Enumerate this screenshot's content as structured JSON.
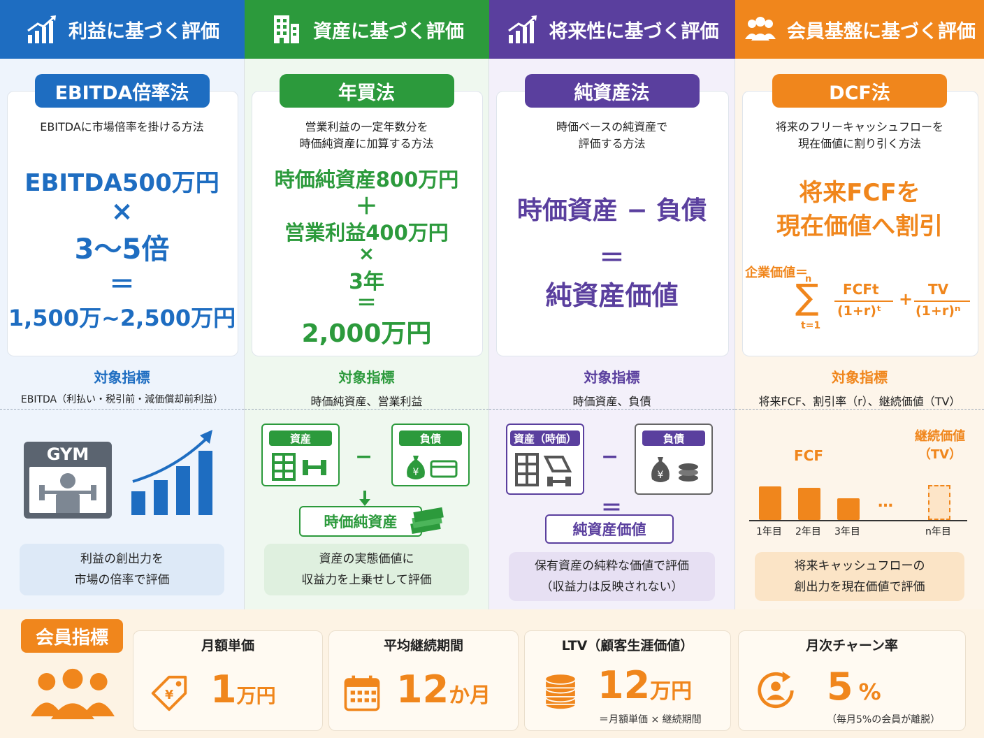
{
  "headers": [
    {
      "label": "利益に基づく評価",
      "color": "#1e6dc1",
      "icon": "growth-chart-icon"
    },
    {
      "label": "資産に基づく評価",
      "color": "#2c9a3c",
      "icon": "building-icon"
    },
    {
      "label": "将来性に基づく評価",
      "color": "#5a3f9e",
      "icon": "growth-chart-icon"
    },
    {
      "label": "会員基盤に基づく評価",
      "color": "#f0861c",
      "icon": "group-icon"
    }
  ],
  "methods": [
    {
      "title": "EBITDA倍率法",
      "desc": "EBITDAに市場倍率を掛ける方法",
      "formula": [
        "EBITDA500万円",
        "×",
        "3〜5倍",
        "＝",
        "1,500万~2,500万円"
      ],
      "target_title": "対象指標",
      "target": "EBITDA（利払い・税引前・減価償却前利益）",
      "illus": {
        "gym": "GYM"
      },
      "note": "利益の創出力を\n市場の倍率で評価"
    },
    {
      "title": "年買法",
      "desc": "営業利益の一定年数分を\n時価純資産に加算する方法",
      "formula": [
        "時価純資産800万円",
        "＋",
        "営業利益400万円",
        "×",
        "3年",
        "＝",
        "2,000万円"
      ],
      "target_title": "対象指標",
      "target": "時価純資産、営業利益",
      "illus": {
        "left": "資産",
        "right": "負債",
        "minus": "−",
        "result": "時価純資産"
      },
      "note": "資産の実態価値に\n収益力を上乗せして評価"
    },
    {
      "title": "純資産法",
      "desc": "時価ベースの純資産で\n評価する方法",
      "formula": [
        "時価資産 − 負債",
        "＝",
        "純資産価値"
      ],
      "target_title": "対象指標",
      "target": "時価資産、負債",
      "illus": {
        "left": "資産（時価）",
        "right": "負債",
        "minus": "−",
        "eq": "＝",
        "result": "純資産価値"
      },
      "note": "保有資産の純粋な価値で評価\n（収益力は反映されない）"
    },
    {
      "title": "DCF法",
      "desc": "将来のフリーキャッシュフローを\n現在価値に割り引く方法",
      "formula": [
        "将来FCFを",
        "現在価値へ割引"
      ],
      "equation": {
        "lhs": "企業価値＝",
        "sum_top": "n",
        "sum_bottom": "t=1",
        "num1": "FCFt",
        "den1": "(1+r)ᵗ",
        "plus": "+",
        "num2": "TV",
        "den2": "(1+r)ⁿ"
      },
      "target_title": "対象指標",
      "target": "将来FCF、割引率（r）、継続価値（TV）",
      "illus": {
        "fcf_label": "FCF",
        "tv_label": "継続価値\n（TV）",
        "ellipsis": "…",
        "bars": [
          {
            "label": "1年目",
            "value": 0.72
          },
          {
            "label": "2年目",
            "value": 0.7
          },
          {
            "label": "3年目",
            "value": 0.47
          },
          {
            "label": "n年目",
            "value": 0.75
          }
        ]
      },
      "note": "将来キャッシュフローの\n創出力を現在価値で評価"
    }
  ],
  "member": {
    "title": "会員指標",
    "metrics": [
      {
        "label": "月額単価",
        "value": "1",
        "unit": "万円",
        "sub": "",
        "icon": "price-tag-icon"
      },
      {
        "label": "平均継続期間",
        "value": "12",
        "unit": "か月",
        "sub": "",
        "icon": "calendar-icon"
      },
      {
        "label": "LTV（顧客生涯価値）",
        "value": "12",
        "unit": "万円",
        "sub": "＝月額単価 × 継続期間",
        "icon": "coin-stack-icon"
      },
      {
        "label": "月次チャーン率",
        "value": "5",
        "unit": "%",
        "sub": "（毎月5%の会員が離脱）",
        "icon": "churn-user-icon"
      }
    ]
  }
}
